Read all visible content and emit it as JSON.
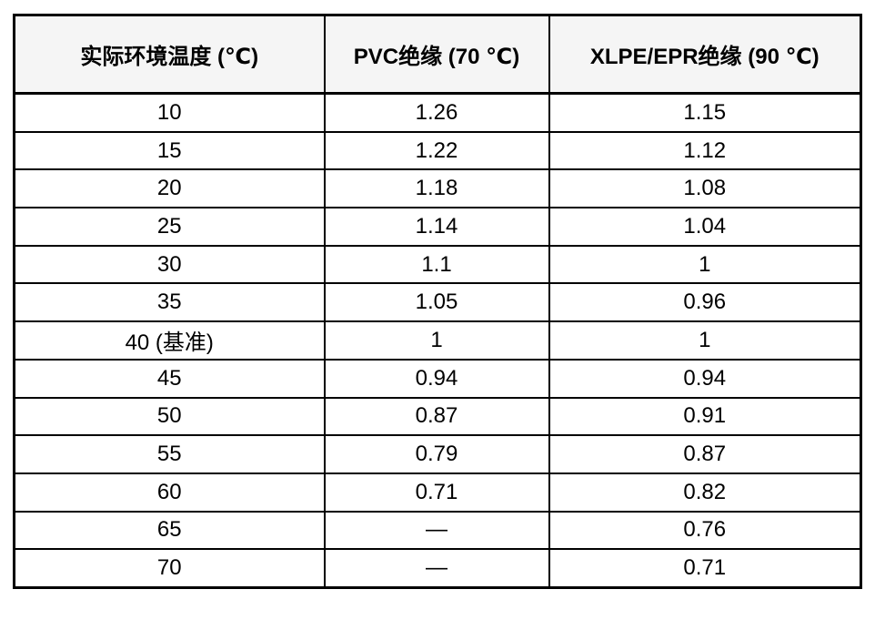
{
  "chart_data": {
    "type": "table",
    "columns": [
      "实际环境温度 (℃)",
      "PVC绝缘 (70 ℃)",
      "XLPE/EPR绝缘 (90 ℃)"
    ],
    "rows": [
      [
        "10",
        "1.26",
        "1.15"
      ],
      [
        "15",
        "1.22",
        "1.12"
      ],
      [
        "20",
        "1.18",
        "1.08"
      ],
      [
        "25",
        "1.14",
        "1.04"
      ],
      [
        "30",
        "1.1",
        "1"
      ],
      [
        "35",
        "1.05",
        "0.96"
      ],
      [
        "40 (基准)",
        "1",
        "1"
      ],
      [
        "45",
        "0.94",
        "0.94"
      ],
      [
        "50",
        "0.87",
        "0.91"
      ],
      [
        "55",
        "0.79",
        "0.87"
      ],
      [
        "60",
        "0.71",
        "0.82"
      ],
      [
        "65",
        "—",
        "0.76"
      ],
      [
        "70",
        "—",
        "0.71"
      ]
    ],
    "missing_value_symbol": "—",
    "baseline_row_label": "40 (基准)"
  },
  "colors": {
    "border": "#000000",
    "header_background": "#f5f5f5",
    "cell_background": "#ffffff",
    "text": "#000000"
  }
}
